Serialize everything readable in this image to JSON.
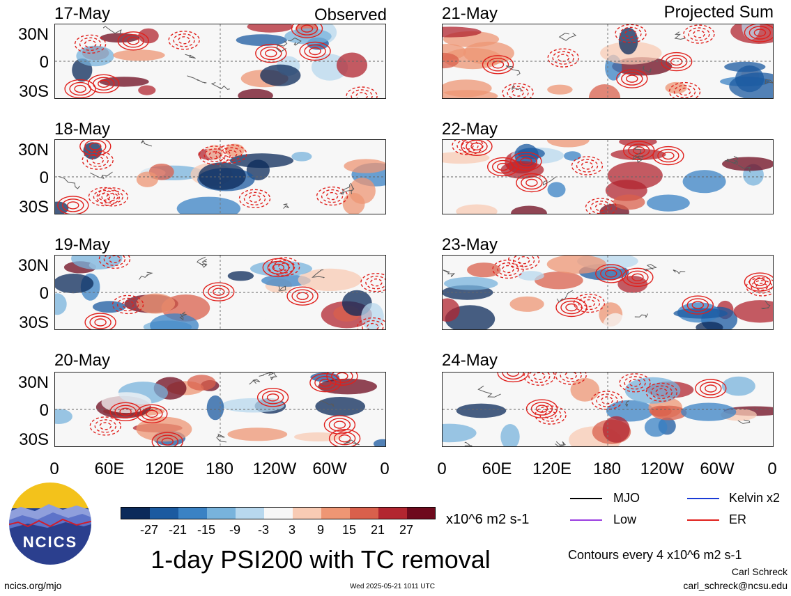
{
  "header": {
    "left_tag": "Observed",
    "right_tag": "Projected Sum"
  },
  "panels": {
    "observed": [
      "17-May",
      "18-May",
      "19-May",
      "20-May"
    ],
    "projected": [
      "21-May",
      "22-May",
      "23-May",
      "24-May"
    ]
  },
  "axes": {
    "lat_labels": [
      "30N",
      "0",
      "30S"
    ],
    "lon_labels": [
      "0",
      "60E",
      "120E",
      "180",
      "120W",
      "60W",
      "0"
    ]
  },
  "colorbar": {
    "ticks": [
      "-27",
      "-21",
      "-15",
      "-9",
      "-3",
      "3",
      "9",
      "15",
      "21",
      "27"
    ],
    "units": "x10^6 m2 s-1",
    "colors": [
      "#0b2a5a",
      "#1b5aa0",
      "#3a82c4",
      "#78b3dc",
      "#b8d8ee",
      "#f7f7f7",
      "#f8cbb4",
      "#ee9674",
      "#d9604c",
      "#b22630",
      "#6e0a1d"
    ]
  },
  "title": "1-day PSI200 with TC removal",
  "logo": {
    "text": "NCICS"
  },
  "legend": {
    "items": [
      {
        "label": "MJO",
        "color": "#000000"
      },
      {
        "label": "Kelvin x2",
        "color": "#1a3bd6"
      },
      {
        "label": "Low",
        "color": "#9b3ee0"
      },
      {
        "label": "ER",
        "color": "#e0201c"
      }
    ],
    "contours_note": "Contours every 4 x10^6 m2 s-1"
  },
  "footer": {
    "url": "ncics.org/mjo",
    "timestamp": "Wed 2025-05-21 1011 UTC",
    "author": "Carl Schreck",
    "email": "carl_schreck@ncsu.edu"
  }
}
